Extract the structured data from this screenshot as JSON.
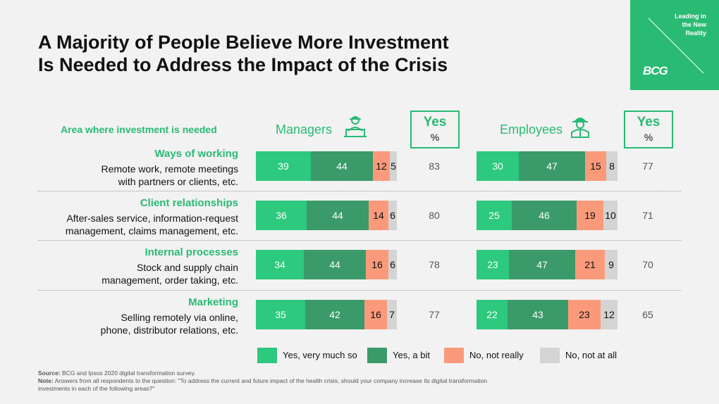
{
  "title": "A Majority of People Believe More Investment\nIs Needed to Address the Impact of the Crisis",
  "brand": {
    "tagline": "Leading in\nthe New\nReality",
    "logo": "BCG",
    "color": "#29ba74"
  },
  "colors": {
    "very_much": "#2dc97e",
    "a_bit": "#3a9a6a",
    "not_really": "#fb9a7a",
    "not_at_all": "#d4d4d4",
    "accent": "#29ba74"
  },
  "column_header": "Area where investment is needed",
  "yes_header": {
    "label": "Yes",
    "unit": "%"
  },
  "legend": [
    "Yes, very much so",
    "Yes, a bit",
    "No, not really",
    "No, not at all"
  ],
  "source_label": "Source:",
  "source_text": "BCG and Ipsos 2020 digital transformation survey.",
  "note_label": "Note:",
  "note_text": "Answers from all respondents to the question: \"To address the current and future impact of the health crisis, should your company increase its digital transformation investments in each of the following areas?\"",
  "chart_data": {
    "type": "bar",
    "stacked": true,
    "orientation": "horizontal",
    "categories": [
      {
        "title": "Ways of working",
        "desc": "Remote work, remote meetings\nwith partners or clients, etc."
      },
      {
        "title": "Client relationships",
        "desc": "After-sales service, information-request\nmanagement, claims management, etc."
      },
      {
        "title": "Internal processes",
        "desc": "Stock and supply chain\nmanagement, order taking, etc."
      },
      {
        "title": "Marketing",
        "desc": "Selling remotely via online,\nphone, distributor relations, etc."
      }
    ],
    "groups": [
      {
        "name": "Managers",
        "series": [
          {
            "name": "Yes, very much so",
            "values": [
              39,
              36,
              34,
              35
            ]
          },
          {
            "name": "Yes, a bit",
            "values": [
              44,
              44,
              44,
              42
            ]
          },
          {
            "name": "No, not really",
            "values": [
              12,
              14,
              16,
              16
            ]
          },
          {
            "name": "No, not at all",
            "values": [
              5,
              6,
              6,
              7
            ]
          }
        ],
        "yes_total": [
          83,
          80,
          78,
          77
        ]
      },
      {
        "name": "Employees",
        "series": [
          {
            "name": "Yes, very much so",
            "values": [
              30,
              25,
              23,
              22
            ]
          },
          {
            "name": "Yes, a bit",
            "values": [
              47,
              46,
              47,
              43
            ]
          },
          {
            "name": "No, not really",
            "values": [
              15,
              19,
              21,
              23
            ]
          },
          {
            "name": "No, not at all",
            "values": [
              8,
              10,
              9,
              12
            ]
          }
        ],
        "yes_total": [
          77,
          71,
          70,
          65
        ]
      }
    ]
  }
}
